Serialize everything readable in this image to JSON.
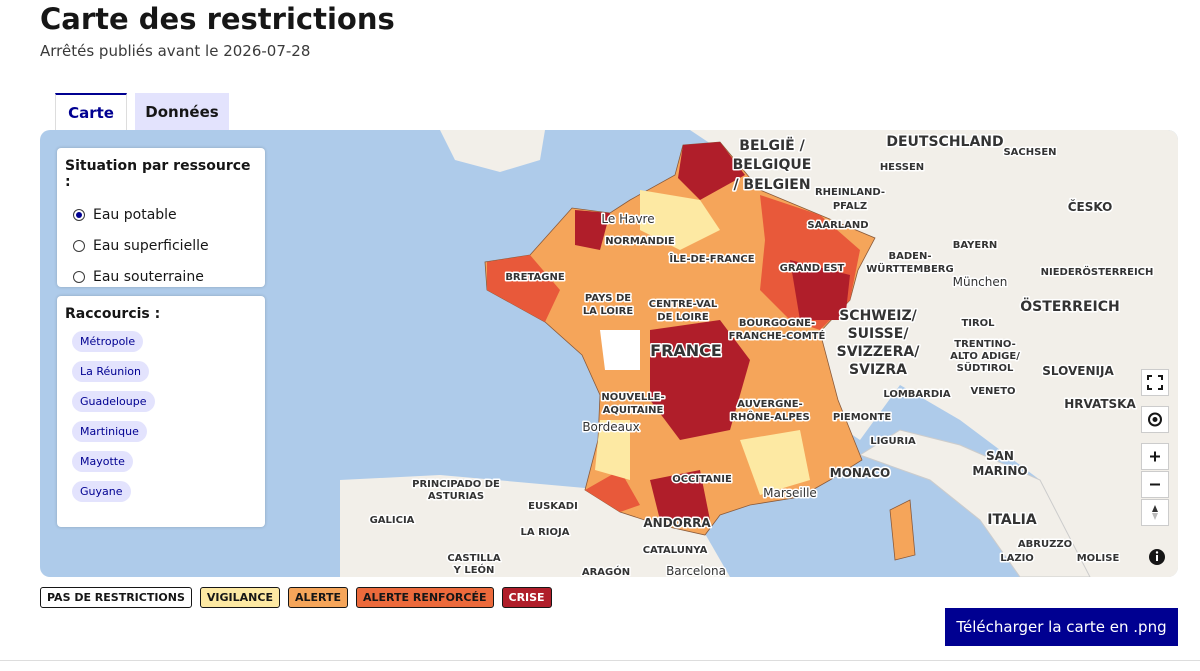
{
  "header": {
    "title": "Carte des restrictions",
    "subtitle": "Arrêtés publiés avant le 2026-07-28"
  },
  "tabs": [
    "Carte",
    "Données"
  ],
  "panel_resource": {
    "title": "Situation par ressource :",
    "options": [
      "Eau potable",
      "Eau superficielle",
      "Eau souterraine"
    ]
  },
  "panel_shortcuts": {
    "title": "Raccourcis :",
    "items": [
      "Métropole",
      "La Réunion",
      "Guadeloupe",
      "Martinique",
      "Mayotte",
      "Guyane"
    ]
  },
  "map": {
    "labels": [
      "DEUTSCHLAND",
      "BELGIË /",
      "BELGIQUE",
      "/ BELGIEN",
      "HESSEN",
      "SACHSEN",
      "RHEINLAND-",
      "PFALZ",
      "SAARLAND",
      "ČESKO",
      "BAYERN",
      "BADEN-",
      "WÜRTTEMBERG",
      "NIEDERÖSTERREICH",
      "München",
      "ÖSTERREICH",
      "SCHWEIZ/",
      "SUISSE/",
      "SVIZZERA/",
      "SVIZRA",
      "TIROL",
      "TRENTINO-",
      "ALTO ADIGE/",
      "SÜDTIROL",
      "SLOVENIJA",
      "LOMBARDIA",
      "VENETO",
      "HRVATSKA",
      "PIEMONTE",
      "LIGURIA",
      "MONACO",
      "SAN",
      "MARINO",
      "ITALIA",
      "ABRUZZO",
      "LAZIO",
      "MOLISE",
      "Le Havre",
      "NORMANDIE",
      "ÎLE-DE-FRANCE",
      "GRAND EST",
      "BRETAGNE",
      "PAYS DE",
      "LA LOIRE",
      "CENTRE-VAL",
      "DE LOIRE",
      "BOURGOGNE-",
      "FRANCHE-COMTÉ",
      "FRANCE",
      "NOUVELLE-",
      "AQUITAINE",
      "AUVERGNE-",
      "RHÔNE-ALPES",
      "Bordeaux",
      "OCCITANIE",
      "Marseille",
      "ANDORRA",
      "PRINCIPADO DE",
      "ASTURIAS",
      "EUSKADI",
      "GALICIA",
      "LA RIOJA",
      "CASTILLA",
      "Y LEÓN",
      "ARAGÓN",
      "CATALUNYA",
      "Barcelona"
    ]
  },
  "legend": [
    "PAS DE RESTRICTIONS",
    "VIGILANCE",
    "ALERTE",
    "ALERTE RENFORCÉE",
    "CRISE"
  ],
  "download_button": "Télécharger la carte en .png"
}
